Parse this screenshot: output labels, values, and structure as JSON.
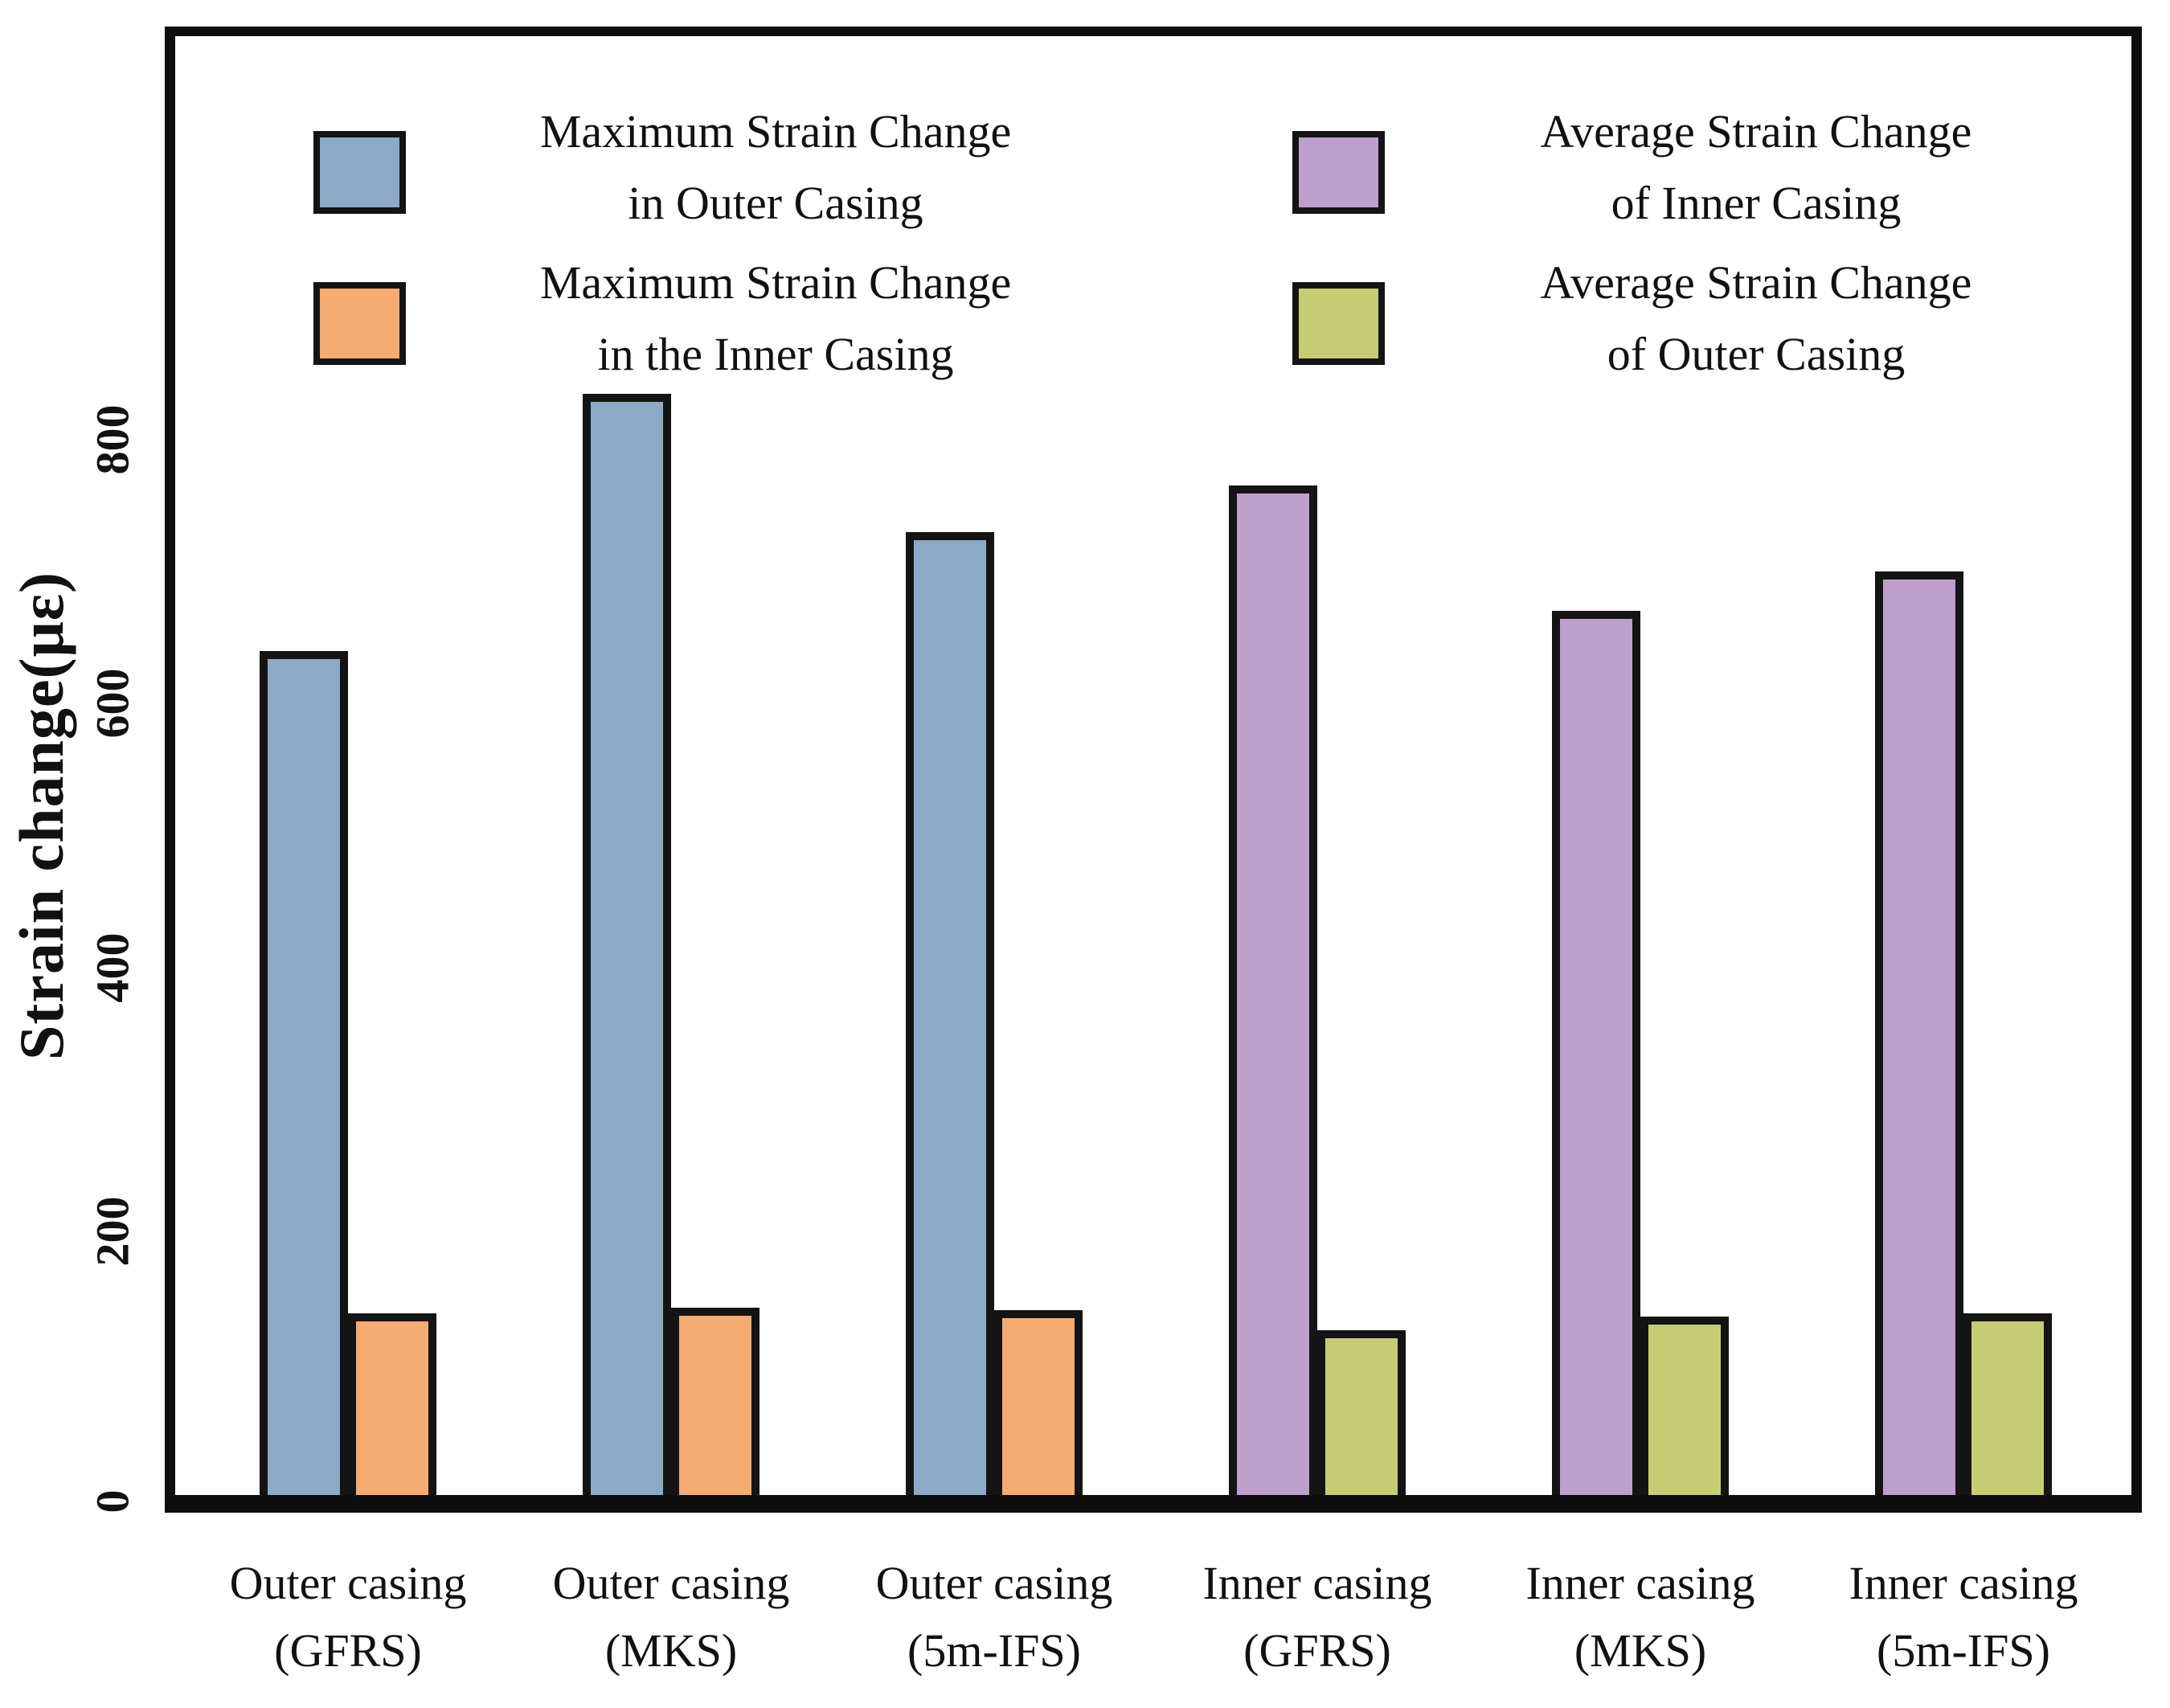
{
  "figure": {
    "type_label": "grouped bar chart",
    "background": "#ffffff",
    "frame_color": "#0d0d0d"
  },
  "y_axis": {
    "title": "Strain change(με)",
    "tick_labels": [
      "0",
      "200",
      "400",
      "600",
      "800"
    ]
  },
  "legend": {
    "position": "top",
    "items": [
      {
        "label_lines": [
          "Maximum Strain Change",
          "in Outer Casing"
        ],
        "color": "#8ca9c6"
      },
      {
        "label_lines": [
          "Maximum Strain Change",
          "in the Inner Casing"
        ],
        "color": "#f6ab70"
      },
      {
        "label_lines": [
          "Average Strain Change",
          "of Inner Casing"
        ],
        "color": "#bf9fcc"
      },
      {
        "label_lines": [
          "Average Strain Change",
          "of Outer Casing"
        ],
        "color": "#c5ce73"
      }
    ]
  },
  "chart_data": {
    "type": "bar",
    "title": "",
    "xlabel": "",
    "ylabel": "Strain change(με)",
    "ylim": [
      0,
      1100
    ],
    "yticks": [
      0,
      200,
      400,
      600,
      800
    ],
    "grid": false,
    "legend_position": "top",
    "bar_outline_color": "#141414",
    "categories": [
      {
        "line1": "Outer casing",
        "line2": "(GFRS)"
      },
      {
        "line1": "Outer casing",
        "line2": "(MKS)"
      },
      {
        "line1": "Outer casing",
        "line2": "(5m-IFS)"
      },
      {
        "line1": "Inner casing",
        "line2": "(GFRS)"
      },
      {
        "line1": "Inner casing",
        "line2": "(MKS)"
      },
      {
        "line1": "Inner casing",
        "line2": "(5m-IFS)"
      }
    ],
    "unit": "με",
    "series": [
      {
        "name": "Maximum Strain Change in Outer Casing",
        "color": "#8ca9c6",
        "values": [
          640,
          835,
          730,
          null,
          null,
          null
        ]
      },
      {
        "name": "Maximum Strain Change in the Inner Casing",
        "color": "#f6ab70",
        "values": [
          138,
          142,
          140,
          null,
          null,
          null
        ]
      },
      {
        "name": "Average Strain Change of Inner Casing",
        "color": "#bf9fcc",
        "values": [
          null,
          null,
          null,
          765,
          670,
          700
        ]
      },
      {
        "name": "Average Strain Change of Outer Casing",
        "color": "#c5ce73",
        "values": [
          null,
          null,
          null,
          125,
          135,
          138
        ]
      }
    ]
  }
}
